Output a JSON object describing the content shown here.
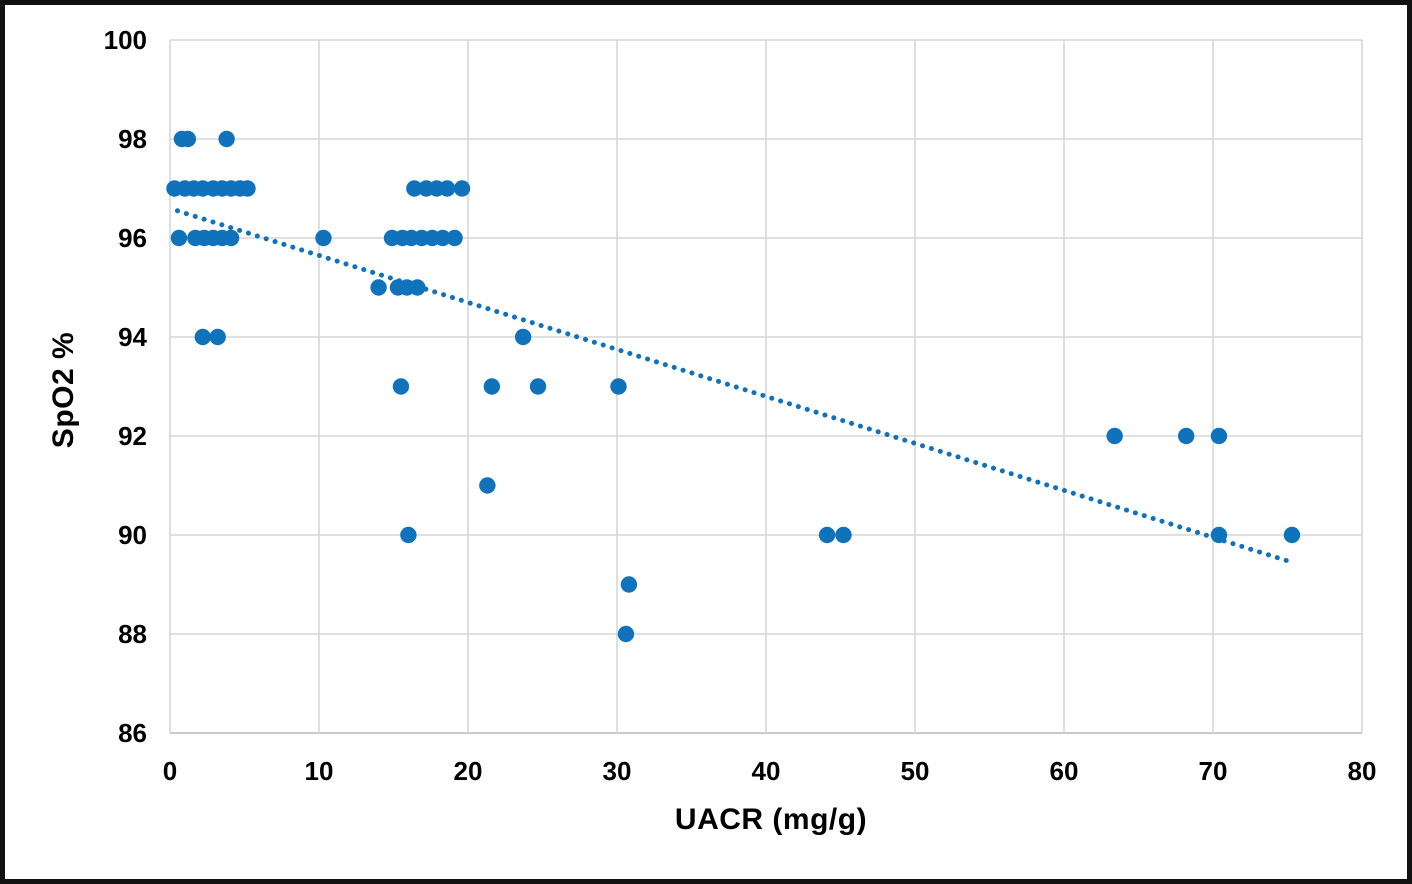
{
  "frame": {
    "border_color": "#111111",
    "background": "#ffffff"
  },
  "chart_data": {
    "type": "scatter",
    "title": "",
    "xlabel": "UACR (mg/g)",
    "ylabel": "SpO2 %",
    "xlim": [
      0,
      80
    ],
    "ylim": [
      86,
      100
    ],
    "x_ticks": [
      0,
      10,
      20,
      30,
      40,
      50,
      60,
      70,
      80
    ],
    "y_ticks": [
      86,
      88,
      90,
      92,
      94,
      96,
      98,
      100
    ],
    "grid": true,
    "legend": false,
    "marker_color": "#1172bc",
    "marker_radius": 8.2,
    "gridline_color": "#d6d6d6",
    "bottom_axis_color": "#b7b7b7",
    "tick_label_color": "#000000",
    "points": [
      [
        0.8,
        98
      ],
      [
        1.2,
        98
      ],
      [
        3.8,
        98
      ],
      [
        0.3,
        97
      ],
      [
        1.0,
        97
      ],
      [
        1.6,
        97
      ],
      [
        2.2,
        97
      ],
      [
        2.9,
        97
      ],
      [
        3.5,
        97
      ],
      [
        4.1,
        97
      ],
      [
        4.7,
        97
      ],
      [
        5.2,
        97
      ],
      [
        16.4,
        97
      ],
      [
        17.2,
        97
      ],
      [
        17.9,
        97
      ],
      [
        18.6,
        97
      ],
      [
        19.6,
        97
      ],
      [
        0.6,
        96
      ],
      [
        1.7,
        96
      ],
      [
        2.3,
        96
      ],
      [
        2.9,
        96
      ],
      [
        3.5,
        96
      ],
      [
        4.1,
        96
      ],
      [
        10.3,
        96
      ],
      [
        14.9,
        96
      ],
      [
        15.6,
        96
      ],
      [
        16.2,
        96
      ],
      [
        16.9,
        96
      ],
      [
        17.6,
        96
      ],
      [
        18.3,
        96
      ],
      [
        19.1,
        96
      ],
      [
        14.0,
        95
      ],
      [
        15.3,
        95
      ],
      [
        15.9,
        95
      ],
      [
        16.6,
        95
      ],
      [
        2.2,
        94
      ],
      [
        3.2,
        94
      ],
      [
        23.7,
        94
      ],
      [
        15.5,
        93
      ],
      [
        21.6,
        93
      ],
      [
        24.7,
        93
      ],
      [
        30.1,
        93
      ],
      [
        63.4,
        92
      ],
      [
        68.2,
        92
      ],
      [
        70.4,
        92
      ],
      [
        21.3,
        91
      ],
      [
        16.0,
        90
      ],
      [
        44.1,
        90
      ],
      [
        45.2,
        90
      ],
      [
        70.4,
        90
      ],
      [
        75.3,
        90
      ],
      [
        30.8,
        89
      ],
      [
        30.6,
        88
      ]
    ],
    "trendline": {
      "style": "dotted",
      "color": "#1172bc",
      "x1": 0.5,
      "y1": 96.55,
      "x2": 75.3,
      "y2": 89.45
    }
  }
}
